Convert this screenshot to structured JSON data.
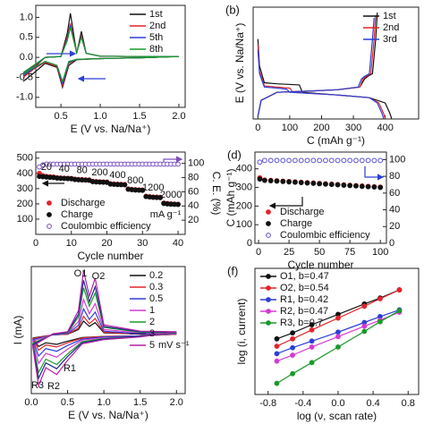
{
  "chart_data": [
    {
      "type": "line",
      "xlabel": "E (V vs. Na/Na⁺)",
      "legend": "upper right",
      "xlim": [
        0.18,
        2.08
      ],
      "ylim": [
        -1.25,
        1.3
      ],
      "xticks": [
        0.5,
        {
          "value": 1,
          "label": "1.0"
        },
        1.5,
        {
          "value": 2,
          "label": "2.0"
        }
      ],
      "yticks": [
        {
          "value": -1,
          "label": "-1.0"
        },
        -0.5,
        {
          "value": 0,
          "label": "0.0"
        },
        0.5,
        {
          "value": 1,
          "label": "1.0"
        }
      ],
      "x": [
        0.02,
        0.3,
        0.5,
        0.58,
        0.62,
        0.7,
        0.76,
        0.82,
        1.0,
        1.5,
        2.0,
        1.5,
        1.0,
        0.7,
        0.6,
        0.52,
        0.45,
        0.3,
        0.15,
        0.02
      ],
      "series": [
        {
          "name": "1st",
          "color": "#111111",
          "values": [
            -0.5,
            0.0,
            0.02,
            0.6,
            1.1,
            0.1,
            0.65,
            0.1,
            0.03,
            0.02,
            0.02,
            -0.01,
            -0.03,
            -0.06,
            -0.2,
            -0.75,
            -0.25,
            -0.15,
            -0.4,
            -0.6
          ]
        },
        {
          "name": "2nd",
          "color": "#e3242b",
          "values": [
            -0.45,
            0.0,
            0.02,
            0.5,
            0.85,
            0.12,
            0.55,
            0.1,
            0.03,
            0.02,
            0.02,
            -0.01,
            -0.03,
            -0.05,
            -0.15,
            -0.7,
            -0.22,
            -0.12,
            -0.3,
            -0.5
          ]
        },
        {
          "name": "5th",
          "color": "#2b3fd6",
          "values": [
            -0.4,
            0.0,
            0.02,
            0.45,
            0.8,
            0.12,
            0.52,
            0.1,
            0.03,
            0.02,
            0.02,
            -0.01,
            -0.03,
            -0.05,
            -0.12,
            -0.65,
            -0.2,
            -0.1,
            -0.28,
            -0.45
          ]
        },
        {
          "name": "8th",
          "color": "#1a9a2a",
          "values": [
            -0.38,
            0.0,
            0.02,
            0.42,
            0.75,
            0.12,
            0.5,
            0.1,
            0.03,
            0.02,
            0.02,
            -0.01,
            -0.03,
            -0.05,
            -0.1,
            -0.6,
            -0.2,
            -0.1,
            -0.26,
            -0.42
          ]
        }
      ]
    },
    {
      "type": "line",
      "label": "(b)",
      "xlabel": "C (mAh g⁻¹)",
      "ylabel": "E (V vs. Na/Na⁺)",
      "legend": "upper right",
      "xlim": [
        -15,
        505
      ],
      "ylim": [
        0,
        2.1
      ],
      "xticks": [
        0,
        100,
        200,
        300,
        400
      ],
      "series": [
        {
          "name": "1st",
          "color": "#111111",
          "x": [
            0,
            5,
            20,
            60,
            130,
            140,
            250,
            350,
            400,
            415,
            420,
            null,
            0,
            10,
            60,
            150,
            250,
            320,
            335,
            345,
            360,
            370,
            375
          ],
          "values": [
            1.5,
            1.0,
            0.68,
            0.66,
            0.64,
            0.5,
            0.45,
            0.4,
            0.3,
            0.1,
            0.01,
            null,
            0.05,
            0.35,
            0.5,
            0.52,
            0.55,
            0.6,
            0.75,
            0.8,
            0.85,
            1.5,
            2.0
          ]
        },
        {
          "name": "2nd",
          "color": "#e3242b",
          "x": [
            0,
            5,
            20,
            60,
            100,
            110,
            250,
            350,
            380,
            395,
            400,
            null,
            0,
            10,
            60,
            150,
            250,
            320,
            330,
            340,
            355,
            365,
            370
          ],
          "values": [
            1.4,
            0.9,
            0.62,
            0.6,
            0.58,
            0.5,
            0.45,
            0.4,
            0.3,
            0.1,
            0.01,
            null,
            0.05,
            0.35,
            0.5,
            0.52,
            0.55,
            0.6,
            0.75,
            0.8,
            0.85,
            1.5,
            1.95
          ]
        },
        {
          "name": "3rd",
          "color": "#2b3fd6",
          "x": [
            0,
            5,
            20,
            60,
            90,
            100,
            250,
            350,
            375,
            390,
            395,
            null,
            0,
            10,
            60,
            150,
            250,
            315,
            325,
            335,
            350,
            360,
            365
          ],
          "values": [
            1.3,
            0.85,
            0.6,
            0.58,
            0.56,
            0.5,
            0.45,
            0.4,
            0.3,
            0.1,
            0.01,
            null,
            0.05,
            0.35,
            0.5,
            0.52,
            0.55,
            0.6,
            0.75,
            0.8,
            0.85,
            1.5,
            1.9
          ]
        }
      ]
    },
    {
      "type": "scatter",
      "xlabel": "Cycle number",
      "y2label": "C. E. (%)",
      "legend": "lower left",
      "xlim": [
        0,
        42
      ],
      "ylim": [
        0,
        540
      ],
      "y2lim": [
        0,
        116
      ],
      "xticks": [
        0,
        10,
        20,
        30,
        40
      ],
      "yticks": [
        100,
        200,
        300,
        400,
        500
      ],
      "y2ticks": [
        20,
        40,
        60,
        80,
        100
      ],
      "annotations": [
        "20",
        "40",
        "80",
        "200",
        "400",
        "800",
        "1200",
        "2000",
        "mA g⁻¹"
      ],
      "x": [
        1,
        2,
        3,
        4,
        5,
        6,
        7,
        8,
        9,
        10,
        11,
        12,
        13,
        14,
        15,
        16,
        17,
        18,
        19,
        20,
        21,
        22,
        23,
        24,
        25,
        26,
        27,
        28,
        29,
        30,
        31,
        32,
        33,
        34,
        35,
        36,
        37,
        38,
        39,
        40
      ],
      "series": [
        {
          "name": "Discharge",
          "color": "#e3242b",
          "marker": "filled",
          "values": [
            400,
            385,
            380,
            378,
            376,
            372,
            370,
            369,
            368,
            367,
            362,
            360,
            359,
            358,
            357,
            348,
            346,
            345,
            344,
            343,
            332,
            330,
            329,
            328,
            327,
            298,
            295,
            293,
            292,
            291,
            250,
            247,
            245,
            244,
            243,
            205,
            202,
            200,
            199,
            198
          ]
        },
        {
          "name": "Charge",
          "color": "#111111",
          "marker": "filled",
          "values": [
            380,
            378,
            376,
            374,
            373,
            369,
            368,
            367,
            366,
            365,
            360,
            358,
            357,
            356,
            355,
            346,
            344,
            343,
            342,
            341,
            330,
            328,
            327,
            326,
            325,
            296,
            293,
            291,
            290,
            289,
            248,
            245,
            243,
            242,
            241,
            203,
            200,
            198,
            197,
            196
          ]
        },
        {
          "name": "Coulombic efficiency",
          "color": "#7a4fbf",
          "marker": "open",
          "axis": "y2",
          "values": [
            95,
            98,
            99,
            99,
            99,
            99,
            99,
            99,
            99,
            99,
            99,
            99,
            99,
            99,
            99,
            99,
            99,
            99,
            99,
            99,
            99,
            99,
            99,
            99,
            99,
            99,
            99,
            99,
            99,
            99,
            99,
            99,
            99,
            99,
            99,
            99,
            99,
            99,
            99,
            99
          ]
        }
      ]
    },
    {
      "type": "scatter",
      "label": "(d)",
      "xlabel": "Cycle number",
      "ylabel": "C (mAh g⁻¹)",
      "legend": "lower left",
      "xlim": [
        -3,
        105
      ],
      "ylim": [
        0,
        490
      ],
      "y2lim": [
        0,
        109
      ],
      "xticks": [
        0,
        25,
        50,
        75,
        100
      ],
      "yticks": [
        0,
        100,
        200,
        300,
        400
      ],
      "y2ticks": [
        0,
        20,
        40,
        60,
        80,
        100
      ],
      "x": [
        1,
        5,
        10,
        15,
        20,
        25,
        30,
        35,
        40,
        45,
        50,
        55,
        60,
        65,
        70,
        75,
        80,
        85,
        90,
        95,
        100
      ],
      "series": [
        {
          "name": "Discharge",
          "color": "#e3242b",
          "marker": "filled",
          "values": [
            352,
            340,
            338,
            336,
            334,
            332,
            330,
            328,
            326,
            324,
            322,
            320,
            318,
            316,
            314,
            312,
            310,
            308,
            306,
            304,
            302
          ]
        },
        {
          "name": "Charge",
          "color": "#111111",
          "marker": "filled",
          "values": [
            345,
            338,
            336,
            334,
            332,
            330,
            328,
            326,
            324,
            322,
            320,
            318,
            316,
            314,
            312,
            310,
            308,
            306,
            304,
            302,
            300
          ]
        },
        {
          "name": "Coulombic efficiency",
          "color": "#5b4fcf",
          "marker": "open",
          "axis": "y2",
          "values": [
            97,
            99,
            99,
            99,
            99,
            99,
            99,
            99,
            99,
            99,
            99,
            99,
            99,
            99,
            99,
            99,
            99,
            99,
            99,
            99,
            99
          ]
        }
      ]
    },
    {
      "type": "line",
      "xlabel": "E (V vs. Na/Na⁺)",
      "ylabel": "I (mA)",
      "legend": "upper right",
      "xlim": [
        0,
        2.12
      ],
      "ylim": [
        -1.1,
        1.3
      ],
      "xticks": [
        {
          "value": 0,
          "label": "0.0"
        },
        0.5,
        {
          "value": 1,
          "label": "1.0"
        },
        1.5,
        {
          "value": 2,
          "label": "2.0"
        }
      ],
      "annotations": [
        "O1",
        "O2",
        "R1",
        "R2",
        "R3",
        "mV s⁻¹"
      ],
      "x": [
        0.02,
        0.3,
        0.5,
        0.65,
        0.72,
        0.8,
        0.88,
        1.0,
        1.5,
        2.0,
        1.5,
        1.0,
        0.7,
        0.5,
        0.35,
        0.2,
        0.1,
        0.02
      ],
      "series": [
        {
          "name": "0.2",
          "color": "#111111",
          "values": [
            -0.05,
            0.01,
            0.02,
            0.11,
            0.27,
            0.17,
            0.24,
            0.05,
            0.02,
            0.02,
            -0.01,
            -0.02,
            -0.04,
            -0.11,
            -0.17,
            -0.14,
            -0.21,
            -0.05
          ]
        },
        {
          "name": "0.3",
          "color": "#e3242b",
          "values": [
            -0.06,
            0.01,
            0.02,
            0.14,
            0.36,
            0.22,
            0.32,
            0.06,
            0.02,
            0.02,
            -0.01,
            -0.02,
            -0.05,
            -0.14,
            -0.22,
            -0.18,
            -0.28,
            -0.06
          ]
        },
        {
          "name": "0.5",
          "color": "#2b3fd6",
          "values": [
            -0.08,
            0.01,
            0.03,
            0.19,
            0.5,
            0.3,
            0.44,
            0.08,
            0.03,
            0.03,
            -0.01,
            -0.03,
            -0.07,
            -0.19,
            -0.3,
            -0.25,
            -0.39,
            -0.08
          ]
        },
        {
          "name": "1",
          "color": "#d63ad0",
          "values": [
            -0.11,
            0.02,
            0.04,
            0.26,
            0.68,
            0.41,
            0.6,
            0.11,
            0.05,
            0.04,
            -0.02,
            -0.05,
            -0.09,
            -0.26,
            -0.41,
            -0.34,
            -0.53,
            -0.11
          ]
        },
        {
          "name": "2",
          "color": "#1a9a2a",
          "values": [
            -0.15,
            0.02,
            0.05,
            0.35,
            0.9,
            0.55,
            0.8,
            0.15,
            0.06,
            0.05,
            -0.02,
            -0.06,
            -0.12,
            -0.35,
            -0.55,
            -0.45,
            -0.7,
            -0.15
          ]
        },
        {
          "name": "3",
          "color": "#1e2a8a",
          "values": [
            -0.17,
            0.02,
            0.06,
            0.4,
            1.04,
            0.63,
            0.92,
            0.17,
            0.07,
            0.06,
            -0.02,
            -0.07,
            -0.14,
            -0.4,
            -0.63,
            -0.52,
            -0.81,
            -0.17
          ]
        },
        {
          "name": "5",
          "color": "#b51fa6",
          "values": [
            -0.2,
            0.03,
            0.07,
            0.47,
            1.22,
            0.74,
            1.08,
            0.2,
            0.08,
            0.07,
            -0.03,
            -0.08,
            -0.16,
            -0.47,
            -0.74,
            -0.61,
            -0.95,
            -0.2
          ]
        }
      ]
    },
    {
      "type": "line",
      "markers": true,
      "label": "(f)",
      "xlabel": "log (ν, scan rate)",
      "ylabel": "log (i, current)",
      "legend": "upper left",
      "xlim": [
        -0.95,
        0.92
      ],
      "ylim": [
        -1.1,
        0.6
      ],
      "xticks": [
        -0.8,
        -0.4,
        {
          "value": 0,
          "label": "0.0"
        },
        0.4,
        0.8
      ],
      "x": [
        -0.7,
        -0.52,
        -0.3,
        0,
        0.3,
        0.48,
        0.7
      ],
      "series": [
        {
          "name": "O1, b=0.47",
          "color": "#111111",
          "values": [
            -0.35,
            -0.27,
            -0.16,
            -0.02,
            0.12,
            0.2,
            0.31
          ]
        },
        {
          "name": "O2, b=0.54",
          "color": "#e3242b",
          "values": [
            -0.45,
            -0.35,
            -0.23,
            -0.07,
            0.09,
            0.19,
            0.31
          ]
        },
        {
          "name": "R1, b=0.42",
          "color": "#2b3fd6",
          "values": [
            -0.55,
            -0.47,
            -0.38,
            -0.26,
            -0.13,
            -0.05,
            0.04
          ]
        },
        {
          "name": "R2, b=0.47",
          "color": "#d63ad0",
          "values": [
            -0.65,
            -0.57,
            -0.46,
            -0.32,
            -0.18,
            -0.1,
            0.01
          ]
        },
        {
          "name": "R3, b=0.7",
          "color": "#1a9a2a",
          "values": [
            -0.95,
            -0.82,
            -0.67,
            -0.46,
            -0.25,
            -0.12,
            0.03
          ]
        }
      ]
    }
  ]
}
